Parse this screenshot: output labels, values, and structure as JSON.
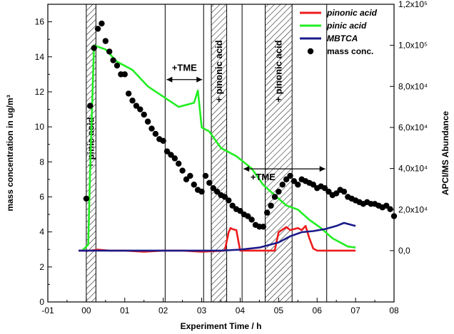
{
  "chart_data": {
    "type": "line",
    "xlabel": "Experiment Time / h",
    "ylabel_left": "mass concentration in ug/m³",
    "ylabel_right": "APCI/MS Abundance",
    "xlim": [
      -1,
      8
    ],
    "ylim_left": [
      0,
      17
    ],
    "ylim_right": [
      -25000,
      120000
    ],
    "x_ticks": [
      {
        "v": -1,
        "label": "-01"
      },
      {
        "v": 0,
        "label": "00"
      },
      {
        "v": 1,
        "label": "01"
      },
      {
        "v": 2,
        "label": "02"
      },
      {
        "v": 3,
        "label": "03"
      },
      {
        "v": 4,
        "label": "04"
      },
      {
        "v": 5,
        "label": "05"
      },
      {
        "v": 6,
        "label": "06"
      },
      {
        "v": 7,
        "label": "07"
      },
      {
        "v": 8,
        "label": "08"
      }
    ],
    "y_left_ticks": [
      0,
      2,
      4,
      6,
      8,
      10,
      12,
      14,
      16
    ],
    "y_right_ticks": [
      {
        "v": 0,
        "label": "0,0"
      },
      {
        "v": 20000,
        "label": "2,0x10⁴"
      },
      {
        "v": 40000,
        "label": "4,0x10⁴"
      },
      {
        "v": 60000,
        "label": "6,0x10⁴"
      },
      {
        "v": 80000,
        "label": "8,0x10⁴"
      },
      {
        "v": 100000,
        "label": "1,0x10⁵"
      },
      {
        "v": 120000,
        "label": "1,2x10⁵"
      }
    ],
    "legend_placement": "top-right",
    "grid": false,
    "series": [
      {
        "name": "pinonic acid",
        "axis": "right",
        "color": "#ee1c1c",
        "style": "line",
        "x": [
          -0.2,
          0.1,
          0.3,
          0.6,
          1.0,
          1.5,
          2.0,
          2.5,
          3.0,
          3.6,
          3.7,
          3.75,
          3.8,
          3.9,
          4.0,
          4.5,
          4.9,
          5.0,
          5.2,
          5.3,
          5.5,
          5.6,
          5.7,
          5.8,
          5.9,
          6.0,
          6.2,
          6.5,
          7.0
        ],
        "y": [
          0,
          0,
          500,
          0,
          0,
          -500,
          0,
          0,
          -500,
          0,
          9000,
          11000,
          10500,
          10000,
          0,
          0,
          0,
          9000,
          11500,
          10000,
          11000,
          10000,
          12000,
          6000,
          1000,
          0,
          0,
          0,
          0
        ]
      },
      {
        "name": "pinic acid",
        "axis": "right",
        "color": "#22ee22",
        "style": "line",
        "x": [
          -0.1,
          0.05,
          0.1,
          0.2,
          0.5,
          0.8,
          1.2,
          1.6,
          2.0,
          2.4,
          2.8,
          2.9,
          3.0,
          3.2,
          3.5,
          3.9,
          4.3,
          4.6,
          4.9,
          5.2,
          5.5,
          5.8,
          6.1,
          6.4,
          6.8,
          7.0
        ],
        "y": [
          0,
          3000,
          40000,
          100000,
          98000,
          92000,
          88000,
          80000,
          75000,
          70000,
          72000,
          78000,
          60000,
          58000,
          50000,
          46000,
          40000,
          32000,
          27000,
          22000,
          20000,
          15000,
          11000,
          6000,
          2000,
          1500
        ]
      },
      {
        "name": "MBTCA",
        "axis": "right",
        "color": "#1a1a8a",
        "style": "line",
        "x": [
          -0.2,
          0.5,
          1.0,
          2.0,
          3.0,
          3.5,
          4.0,
          4.5,
          5.0,
          5.3,
          5.6,
          5.9,
          6.2,
          6.5,
          6.7,
          6.9,
          7.0
        ],
        "y": [
          0,
          0,
          0,
          0,
          0,
          0,
          500,
          1500,
          4000,
          7000,
          9000,
          9500,
          10500,
          12000,
          13500,
          12500,
          12000
        ]
      },
      {
        "name": "mass conc.",
        "axis": "left",
        "color": "#000000",
        "style": "scatter",
        "x": [
          0.0,
          0.1,
          0.2,
          0.3,
          0.4,
          0.5,
          0.6,
          0.7,
          0.8,
          0.9,
          1.0,
          1.1,
          1.2,
          1.3,
          1.4,
          1.5,
          1.6,
          1.7,
          1.8,
          1.9,
          2.0,
          2.1,
          2.2,
          2.3,
          2.4,
          2.5,
          2.6,
          2.7,
          2.8,
          2.9,
          3.0,
          3.1,
          3.2,
          3.3,
          3.4,
          3.5,
          3.6,
          3.7,
          3.8,
          3.9,
          4.0,
          4.1,
          4.2,
          4.3,
          4.4,
          4.5,
          4.6,
          4.7,
          4.8,
          4.9,
          5.0,
          5.1,
          5.2,
          5.3,
          5.4,
          5.5,
          5.6,
          5.7,
          5.8,
          5.9,
          6.0,
          6.1,
          6.2,
          6.3,
          6.4,
          6.5,
          6.6,
          6.7,
          6.8,
          6.9,
          7.0,
          7.1,
          7.2,
          7.3,
          7.4,
          7.5,
          7.6,
          7.7,
          7.8,
          7.9,
          8.0
        ],
        "y": [
          5.9,
          11.2,
          14.5,
          15.6,
          15.9,
          14.9,
          14.3,
          13.8,
          13.5,
          13.0,
          13.0,
          11.9,
          11.5,
          11.2,
          11.0,
          10.7,
          10.3,
          9.9,
          9.6,
          9.3,
          9.2,
          8.6,
          8.4,
          8.2,
          7.9,
          7.5,
          7.0,
          7.2,
          6.7,
          6.4,
          6.3,
          7.2,
          6.8,
          6.5,
          6.3,
          6.1,
          6.0,
          5.8,
          5.5,
          5.3,
          5.2,
          5.0,
          4.9,
          4.7,
          4.4,
          4.3,
          4.3,
          5.1,
          5.5,
          6.0,
          6.3,
          6.7,
          7.0,
          7.2,
          6.9,
          6.7,
          7.0,
          6.9,
          6.8,
          6.7,
          6.5,
          6.6,
          6.5,
          6.3,
          6.1,
          6.2,
          6.4,
          6.3,
          6.0,
          5.9,
          5.8,
          5.7,
          5.6,
          5.7,
          5.6,
          5.6,
          5.5,
          5.4,
          5.5,
          5.3,
          4.9
        ]
      }
    ],
    "hatched_regions": [
      {
        "from": 0.0,
        "to": 0.25,
        "label": "+ pinic acid"
      },
      {
        "from": 3.25,
        "to": 3.65,
        "label": "+ pinonic acid"
      },
      {
        "from": 4.65,
        "to": 5.35,
        "label": "+ pinonic acid"
      }
    ],
    "vertical_lines": [
      2.05,
      3.05,
      4.05,
      6.25
    ],
    "annotations": [
      {
        "text": "+TME",
        "x_from": 2.05,
        "x_to": 3.05,
        "y": 12.7
      },
      {
        "text": "+TME",
        "x_from": 4.05,
        "x_to": 6.25,
        "y": 7.6
      }
    ]
  }
}
